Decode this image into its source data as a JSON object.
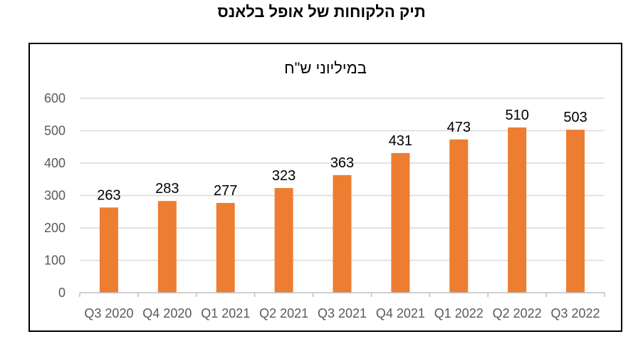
{
  "page": {
    "title": "תיק הלקוחות של אופל בלאנס"
  },
  "chart_data": {
    "type": "bar",
    "title": "במיליוני ש\"ח",
    "xlabel": "",
    "ylabel": "",
    "categories": [
      "Q3 2020",
      "Q4 2020",
      "Q1 2021",
      "Q2 2021",
      "Q3 2021",
      "Q4 2021",
      "Q1 2022",
      "Q2 2022",
      "Q3 2022"
    ],
    "values": [
      263,
      283,
      277,
      323,
      363,
      431,
      473,
      510,
      503
    ],
    "ylim": [
      0,
      600
    ],
    "yticks": [
      0,
      100,
      200,
      300,
      400,
      500,
      600
    ],
    "grid": true,
    "legend": "none",
    "colors": {
      "bar": "#ED7D31",
      "grid": "#D9D9D9",
      "axis": "#BFBFBF",
      "tick_text": "#595959"
    }
  }
}
